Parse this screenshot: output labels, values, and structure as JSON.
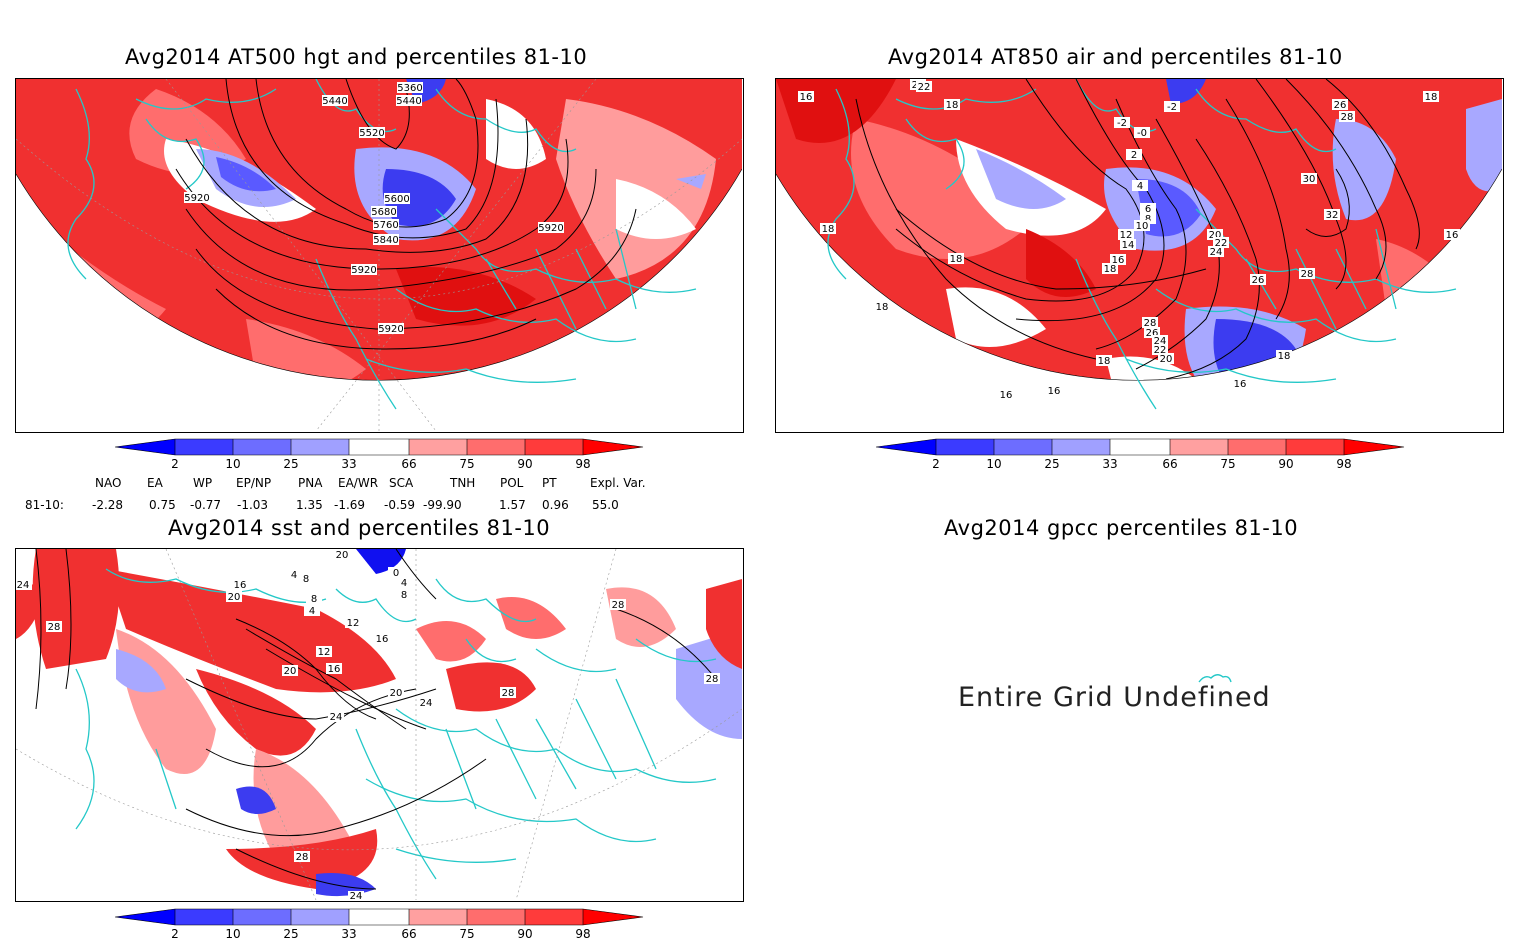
{
  "panels": [
    {
      "title": "Avg2014 AT500 hgt and percentiles 81-10",
      "contour_labels": [
        "5360",
        "5440",
        "5440",
        "5520",
        "5600",
        "5680",
        "5760",
        "5840",
        "5920",
        "5920",
        "5920",
        "5920"
      ]
    },
    {
      "title": "Avg2014 AT850 air and percentiles 81-10",
      "contour_labels": [
        "16",
        "20",
        "22",
        "18",
        "-2",
        "-2",
        "26",
        "28",
        "18",
        "2",
        "-0",
        "4",
        "6",
        "8",
        "10",
        "12",
        "14",
        "16",
        "18",
        "18",
        "18",
        "18",
        "20",
        "22",
        "24",
        "26",
        "28",
        "30",
        "32",
        "16",
        "28",
        "26",
        "24",
        "22",
        "20",
        "18",
        "16",
        "16",
        "16",
        "18"
      ]
    },
    {
      "title": "Avg2014 sst and percentiles 81-10",
      "contour_labels": [
        "24",
        "28",
        "20",
        "16",
        "20",
        "4",
        "8",
        "8",
        "4",
        "0",
        "4",
        "8",
        "12",
        "16",
        "12",
        "16",
        "20",
        "20",
        "24",
        "24",
        "28",
        "28",
        "28",
        "28",
        "24"
      ]
    },
    {
      "title": "Avg2014 gpcc percentiles 81-10",
      "message": "Entire Grid Undefined"
    }
  ],
  "colorbar": {
    "labels": [
      "2",
      "10",
      "25",
      "33",
      "66",
      "75",
      "90",
      "98"
    ],
    "colors": [
      "#0000ff",
      "#3b3bff",
      "#6d6dff",
      "#a0a0ff",
      "#ffffff",
      "#ffa0a0",
      "#ff6d6d",
      "#ff3b3b",
      "#ff0000"
    ]
  },
  "indices": {
    "headers": [
      "NAO",
      "EA",
      "WP",
      "EP/NP",
      "PNA",
      "EA/WR",
      "SCA",
      "TNH",
      "POL",
      "PT",
      "Expl. Var."
    ],
    "row_label": "81-10:",
    "values": [
      "-2.28",
      "0.75",
      "-0.77",
      "-1.03",
      "1.35",
      "-1.69",
      "-0.59",
      "-99.90",
      "1.57",
      "0.96",
      "55.0"
    ]
  },
  "colors": {
    "red": "#f03030",
    "light_red": "#ff9c9c",
    "blue": "#3c3cf0",
    "light_blue": "#a8a8ff",
    "coast": "#24c8c8"
  }
}
